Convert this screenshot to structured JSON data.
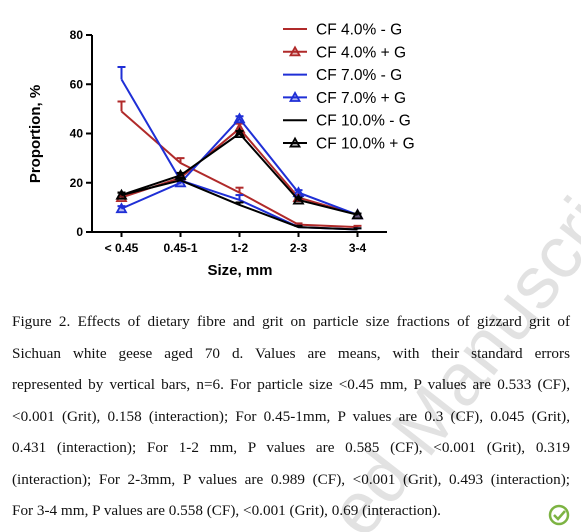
{
  "chart_data": {
    "type": "line",
    "ylabel": "Proportion, %",
    "xlabel": "Size, mm",
    "categories": [
      "< 0.45",
      "0.45-1",
      "1-2",
      "2-3",
      "3-4"
    ],
    "ylim": [
      0,
      80
    ],
    "yticks": [
      0,
      20,
      40,
      60,
      80
    ],
    "legend": "upper right",
    "series": [
      {
        "name": "CF 4.0% - G",
        "color": "#b02a2a",
        "marker": "none",
        "values": [
          49,
          28,
          16,
          3,
          2
        ],
        "errors": [
          4,
          2,
          2,
          0.5,
          0.5
        ]
      },
      {
        "name": "CF 4.0% + G",
        "color": "#b02a2a",
        "marker": "triangle",
        "values": [
          14,
          22,
          42,
          14,
          7
        ],
        "errors": [
          2,
          1,
          2,
          1,
          0.5
        ]
      },
      {
        "name": "CF 7.0% - G",
        "color": "#1f2fd6",
        "marker": "none",
        "values": [
          62,
          21,
          13,
          2,
          1
        ],
        "errors": [
          5,
          1,
          2,
          0.5,
          0.5
        ]
      },
      {
        "name": "CF 7.0% + G",
        "color": "#1f2fd6",
        "marker": "triangle",
        "values": [
          9.5,
          20,
          46,
          16,
          7
        ],
        "errors": [
          1,
          1,
          1,
          1,
          0.5
        ]
      },
      {
        "name": "CF 10.0% - G",
        "color": "#000000",
        "marker": "none",
        "values": [
          15,
          21,
          11,
          2,
          1
        ],
        "errors": [
          1,
          1,
          1,
          0.5,
          0.5
        ]
      },
      {
        "name": "CF 10.0% + G",
        "color": "#000000",
        "marker": "triangle",
        "values": [
          15,
          23,
          40,
          13,
          7
        ],
        "errors": [
          1,
          1,
          1,
          1,
          0.5
        ]
      }
    ]
  },
  "caption": {
    "lines": [
      "Figure 2. Effects of dietary fibre and grit on particle size fractions of gizzard grit of",
      "Sichuan white geese aged 70 d. Values are means, with their standard errors",
      "represented by vertical bars, n=6. For particle size <0.45 mm, P values are 0.533 (CF),",
      "<0.001 (Grit), 0.158 (interaction); For 0.45-1mm, P values are 0.3 (CF), 0.045 (Grit),",
      "0.431 (interaction); For 1-2 mm, P values are 0.585 (CF), <0.001 (Grit), 0.319",
      "(interaction); For 2-3mm, P values are 0.989 (CF), <0.001 (Grit), 0.493 (interaction);",
      "For 3-4 mm, P values are 0.558 (CF), <0.001 (Grit), 0.69 (interaction)."
    ]
  },
  "watermark": "ed Manuscript"
}
